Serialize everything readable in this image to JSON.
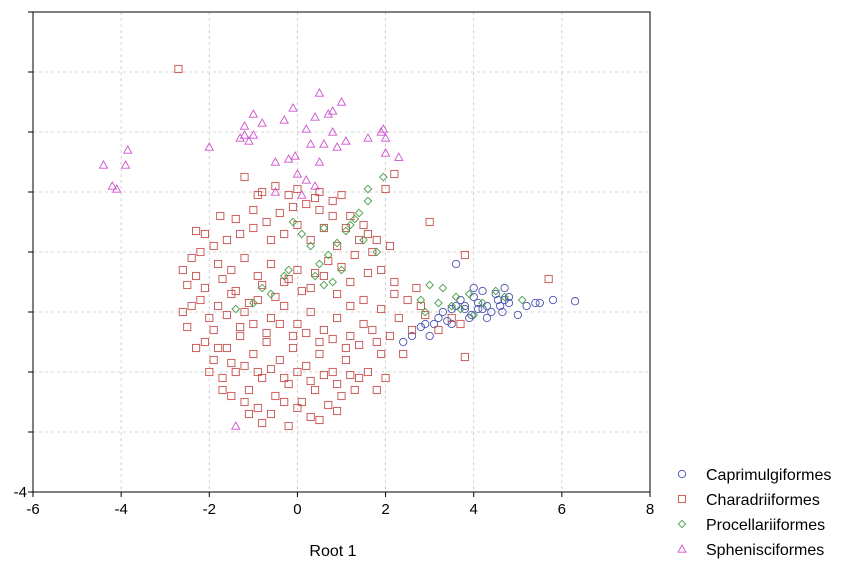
{
  "chart_data": {
    "type": "scatter",
    "title": "",
    "xlabel": "Root 1",
    "ylabel": "",
    "xlim": [
      -6,
      8
    ],
    "ylim": [
      -4,
      4
    ],
    "x_ticks": [
      -6,
      -4,
      -2,
      0,
      2,
      4,
      6,
      8
    ],
    "x_tick_labels": [
      "-6",
      "-4",
      "-2",
      "0",
      "2",
      "4",
      "6",
      "8"
    ],
    "y_tick_labels_shown": [
      "-4"
    ],
    "grid": true,
    "legend_position": "right, below plot",
    "series": [
      {
        "name": "Caprimulgiformes",
        "marker": "circle",
        "color": "#4a52b0",
        "points": [
          [
            3.6,
            -0.2
          ],
          [
            2.9,
            -1.2
          ],
          [
            3.0,
            -1.4
          ],
          [
            3.1,
            -1.2
          ],
          [
            3.2,
            -1.1
          ],
          [
            3.4,
            -1.15
          ],
          [
            3.5,
            -0.95
          ],
          [
            3.6,
            -0.9
          ],
          [
            3.7,
            -0.8
          ],
          [
            3.8,
            -0.95
          ],
          [
            3.9,
            -1.1
          ],
          [
            4.0,
            -0.6
          ],
          [
            4.0,
            -0.75
          ],
          [
            4.1,
            -0.85
          ],
          [
            4.2,
            -0.65
          ],
          [
            4.3,
            -0.9
          ],
          [
            4.4,
            -1.0
          ],
          [
            4.5,
            -0.7
          ],
          [
            4.6,
            -0.9
          ],
          [
            4.7,
            -0.8
          ],
          [
            4.8,
            -0.85
          ],
          [
            4.1,
            -0.95
          ],
          [
            4.3,
            -1.1
          ],
          [
            4.7,
            -0.6
          ],
          [
            4.8,
            -0.75
          ],
          [
            5.0,
            -1.05
          ],
          [
            5.2,
            -0.9
          ],
          [
            5.4,
            -0.85
          ],
          [
            5.5,
            -0.85
          ],
          [
            5.8,
            -0.8
          ],
          [
            6.3,
            -0.82
          ],
          [
            3.3,
            -1.0
          ],
          [
            3.5,
            -1.2
          ],
          [
            2.8,
            -1.25
          ],
          [
            2.6,
            -1.4
          ],
          [
            2.4,
            -1.5
          ],
          [
            3.8,
            -0.9
          ],
          [
            4.2,
            -0.95
          ],
          [
            4.55,
            -0.8
          ],
          [
            3.95,
            -1.05
          ],
          [
            4.65,
            -1.0
          ]
        ]
      },
      {
        "name": "Charadriiformes",
        "marker": "square",
        "color": "#c8504e",
        "points": [
          [
            -2.7,
            3.05
          ],
          [
            -1.2,
            1.25
          ],
          [
            2.2,
            1.3
          ],
          [
            2.0,
            1.05
          ],
          [
            3.0,
            0.5
          ],
          [
            3.8,
            -0.05
          ],
          [
            5.7,
            -0.45
          ],
          [
            3.8,
            -1.75
          ],
          [
            -1.8,
            -0.2
          ],
          [
            -1.5,
            -0.3
          ],
          [
            -1.2,
            -0.1
          ],
          [
            -0.9,
            -0.4
          ],
          [
            -0.6,
            -0.2
          ],
          [
            -0.3,
            -0.5
          ],
          [
            0.0,
            -0.3
          ],
          [
            0.3,
            -0.6
          ],
          [
            0.6,
            -0.4
          ],
          [
            0.9,
            -0.7
          ],
          [
            1.2,
            -0.5
          ],
          [
            1.5,
            -0.8
          ],
          [
            -2.1,
            -0.6
          ],
          [
            -1.8,
            -0.9
          ],
          [
            -1.5,
            -0.7
          ],
          [
            -1.2,
            -1.0
          ],
          [
            -0.9,
            -0.8
          ],
          [
            -0.6,
            -1.1
          ],
          [
            -0.3,
            -0.9
          ],
          [
            0.0,
            -1.2
          ],
          [
            0.3,
            -1.0
          ],
          [
            0.6,
            -1.3
          ],
          [
            0.9,
            -1.1
          ],
          [
            1.2,
            -1.4
          ],
          [
            1.5,
            -1.2
          ],
          [
            1.8,
            -1.5
          ],
          [
            -1.9,
            -1.3
          ],
          [
            -1.6,
            -1.6
          ],
          [
            -1.3,
            -1.4
          ],
          [
            -1.0,
            -1.7
          ],
          [
            -0.7,
            -1.5
          ],
          [
            -0.4,
            -1.8
          ],
          [
            -0.1,
            -1.6
          ],
          [
            0.2,
            -1.9
          ],
          [
            0.5,
            -1.7
          ],
          [
            0.8,
            -2.0
          ],
          [
            1.1,
            -1.8
          ],
          [
            1.4,
            -2.1
          ],
          [
            -1.4,
            -2.0
          ],
          [
            -1.1,
            -2.3
          ],
          [
            -0.8,
            -2.1
          ],
          [
            -0.5,
            -2.4
          ],
          [
            -0.2,
            -2.2
          ],
          [
            0.1,
            -2.5
          ],
          [
            0.4,
            -2.3
          ],
          [
            -2.3,
            -0.4
          ],
          [
            -2.4,
            -0.1
          ],
          [
            -2.5,
            -0.55
          ],
          [
            -2.2,
            -0.8
          ],
          [
            -2.0,
            -1.1
          ],
          [
            -2.1,
            -1.5
          ],
          [
            -1.9,
            -1.8
          ],
          [
            -1.7,
            -2.1
          ],
          [
            -1.5,
            -2.4
          ],
          [
            -1.2,
            -2.5
          ],
          [
            -0.9,
            -2.6
          ],
          [
            -0.6,
            -2.7
          ],
          [
            -0.3,
            -2.5
          ],
          [
            0.0,
            -2.6
          ],
          [
            0.3,
            -2.75
          ],
          [
            0.7,
            -2.55
          ],
          [
            1.0,
            -2.4
          ],
          [
            1.3,
            -2.3
          ],
          [
            1.6,
            -2.0
          ],
          [
            1.9,
            -1.7
          ],
          [
            2.1,
            -1.4
          ],
          [
            2.3,
            -1.1
          ],
          [
            2.5,
            -0.8
          ],
          [
            2.2,
            -0.5
          ],
          [
            1.9,
            -0.3
          ],
          [
            1.7,
            0.0
          ],
          [
            1.4,
            0.2
          ],
          [
            1.1,
            0.4
          ],
          [
            0.8,
            0.6
          ],
          [
            0.5,
            0.7
          ],
          [
            0.2,
            0.8
          ],
          [
            -0.1,
            0.75
          ],
          [
            -0.4,
            0.65
          ],
          [
            -0.7,
            0.5
          ],
          [
            -1.0,
            0.4
          ],
          [
            -1.3,
            0.3
          ],
          [
            -1.6,
            0.2
          ],
          [
            -1.9,
            0.1
          ],
          [
            -2.2,
            0.0
          ],
          [
            -1.7,
            -0.45
          ],
          [
            -1.4,
            -0.65
          ],
          [
            -1.1,
            -0.85
          ],
          [
            -0.8,
            -0.55
          ],
          [
            -0.5,
            -0.75
          ],
          [
            -0.2,
            -0.45
          ],
          [
            0.1,
            -0.65
          ],
          [
            0.4,
            -0.35
          ],
          [
            0.7,
            -0.15
          ],
          [
            1.0,
            -0.25
          ],
          [
            1.3,
            -0.05
          ],
          [
            1.6,
            -0.35
          ],
          [
            -1.6,
            -1.05
          ],
          [
            -1.3,
            -1.25
          ],
          [
            -1.0,
            -1.2
          ],
          [
            -0.7,
            -1.35
          ],
          [
            -0.4,
            -1.2
          ],
          [
            -0.1,
            -1.4
          ],
          [
            0.2,
            -1.35
          ],
          [
            0.5,
            -1.5
          ],
          [
            0.8,
            -1.45
          ],
          [
            1.1,
            -1.6
          ],
          [
            1.4,
            -1.55
          ],
          [
            1.7,
            -1.3
          ],
          [
            -1.8,
            -1.6
          ],
          [
            -1.5,
            -1.85
          ],
          [
            -1.2,
            -1.9
          ],
          [
            -0.9,
            -2.0
          ],
          [
            -0.6,
            -1.95
          ],
          [
            -0.3,
            -2.1
          ],
          [
            0.0,
            -2.0
          ],
          [
            0.3,
            -2.15
          ],
          [
            0.6,
            -2.05
          ],
          [
            0.9,
            -2.2
          ],
          [
            1.2,
            -2.05
          ],
          [
            -0.8,
            1.0
          ],
          [
            -0.5,
            1.1
          ],
          [
            0.0,
            1.05
          ],
          [
            0.5,
            1.0
          ],
          [
            1.0,
            0.95
          ],
          [
            -1.0,
            0.7
          ],
          [
            -0.3,
            0.3
          ],
          [
            0.3,
            0.2
          ],
          [
            0.9,
            0.1
          ],
          [
            1.5,
            0.45
          ],
          [
            -2.4,
            -0.9
          ],
          [
            -2.5,
            -1.25
          ],
          [
            -2.3,
            -1.6
          ],
          [
            2.4,
            -1.7
          ],
          [
            2.6,
            -1.3
          ],
          [
            2.8,
            -0.9
          ],
          [
            2.7,
            -0.6
          ],
          [
            2.9,
            -1.05
          ],
          [
            3.2,
            -1.3
          ],
          [
            3.5,
            -1.1
          ],
          [
            3.7,
            -1.2
          ],
          [
            2.0,
            -2.1
          ],
          [
            1.8,
            -2.3
          ],
          [
            -2.0,
            -2.0
          ],
          [
            -1.7,
            -2.3
          ],
          [
            0.9,
            -2.65
          ],
          [
            0.5,
            -2.8
          ],
          [
            -0.2,
            -2.9
          ],
          [
            -0.8,
            -2.85
          ],
          [
            -1.1,
            -2.7
          ],
          [
            1.2,
            -0.9
          ],
          [
            1.9,
            -0.95
          ],
          [
            2.2,
            -0.7
          ],
          [
            -2.1,
            0.3
          ],
          [
            -2.6,
            -0.3
          ],
          [
            -2.6,
            -1.0
          ],
          [
            -0.6,
            0.2
          ],
          [
            0.0,
            0.45
          ],
          [
            0.6,
            0.4
          ],
          [
            1.2,
            0.6
          ],
          [
            -1.4,
            0.55
          ],
          [
            -0.9,
            0.95
          ],
          [
            -0.2,
            0.95
          ],
          [
            0.4,
            0.9
          ],
          [
            0.8,
            0.85
          ],
          [
            1.6,
            0.3
          ],
          [
            1.8,
            0.2
          ],
          [
            2.1,
            0.1
          ],
          [
            -1.75,
            0.6
          ],
          [
            -2.3,
            0.35
          ]
        ]
      },
      {
        "name": "Procellariiformes",
        "marker": "diamond",
        "color": "#4ca04c",
        "points": [
          [
            1.6,
            1.05
          ],
          [
            1.95,
            1.25
          ],
          [
            1.6,
            0.85
          ],
          [
            1.4,
            0.65
          ],
          [
            1.3,
            0.55
          ],
          [
            1.1,
            0.35
          ],
          [
            0.9,
            0.15
          ],
          [
            0.7,
            -0.05
          ],
          [
            0.5,
            -0.2
          ],
          [
            0.4,
            -0.4
          ],
          [
            0.6,
            -0.55
          ],
          [
            1.0,
            -0.3
          ],
          [
            0.8,
            -0.5
          ],
          [
            0.3,
            0.1
          ],
          [
            0.1,
            0.3
          ],
          [
            -0.1,
            0.5
          ],
          [
            -0.3,
            -0.4
          ],
          [
            -0.6,
            -0.7
          ],
          [
            -1.0,
            -0.85
          ],
          [
            -1.4,
            -0.95
          ],
          [
            -0.8,
            -0.6
          ],
          [
            -0.2,
            -0.3
          ],
          [
            0.6,
            0.4
          ],
          [
            1.2,
            0.45
          ],
          [
            1.5,
            0.2
          ],
          [
            1.8,
            0.0
          ],
          [
            2.8,
            -0.8
          ],
          [
            3.0,
            -0.55
          ],
          [
            3.2,
            -0.85
          ],
          [
            3.3,
            -0.6
          ],
          [
            3.5,
            -0.9
          ],
          [
            3.7,
            -0.95
          ],
          [
            3.9,
            -0.7
          ],
          [
            4.2,
            -0.85
          ],
          [
            4.5,
            -0.65
          ],
          [
            4.7,
            -0.75
          ],
          [
            5.1,
            -0.8
          ],
          [
            4.0,
            -1.05
          ],
          [
            3.6,
            -0.75
          ],
          [
            2.9,
            -1.0
          ]
        ]
      },
      {
        "name": "Sphenisciformes",
        "marker": "triangle",
        "color": "#d050d0",
        "points": [
          [
            -4.4,
            1.45
          ],
          [
            -4.2,
            1.1
          ],
          [
            -4.1,
            1.05
          ],
          [
            -3.9,
            1.45
          ],
          [
            -3.85,
            1.7
          ],
          [
            -2.0,
            1.75
          ],
          [
            -1.3,
            1.9
          ],
          [
            -1.2,
            2.1
          ],
          [
            -1.2,
            1.95
          ],
          [
            -1.1,
            1.85
          ],
          [
            -1.0,
            1.95
          ],
          [
            -1.0,
            2.3
          ],
          [
            -0.8,
            2.15
          ],
          [
            -0.5,
            1.5
          ],
          [
            -0.3,
            2.2
          ],
          [
            -0.2,
            1.55
          ],
          [
            -0.1,
            2.4
          ],
          [
            -0.05,
            1.6
          ],
          [
            0.0,
            1.3
          ],
          [
            0.2,
            1.2
          ],
          [
            0.2,
            2.05
          ],
          [
            0.3,
            1.8
          ],
          [
            0.4,
            2.25
          ],
          [
            0.5,
            2.65
          ],
          [
            0.5,
            1.5
          ],
          [
            0.6,
            1.8
          ],
          [
            0.7,
            2.3
          ],
          [
            0.8,
            2.35
          ],
          [
            0.8,
            2.0
          ],
          [
            0.9,
            1.75
          ],
          [
            1.0,
            2.5
          ],
          [
            1.1,
            1.85
          ],
          [
            1.6,
            1.9
          ],
          [
            1.9,
            2.0
          ],
          [
            1.95,
            2.05
          ],
          [
            2.0,
            1.9
          ],
          [
            2.0,
            1.65
          ],
          [
            2.3,
            1.58
          ],
          [
            -1.4,
            -2.9
          ],
          [
            -0.5,
            1.0
          ],
          [
            0.1,
            0.95
          ],
          [
            0.4,
            1.1
          ]
        ]
      }
    ]
  }
}
